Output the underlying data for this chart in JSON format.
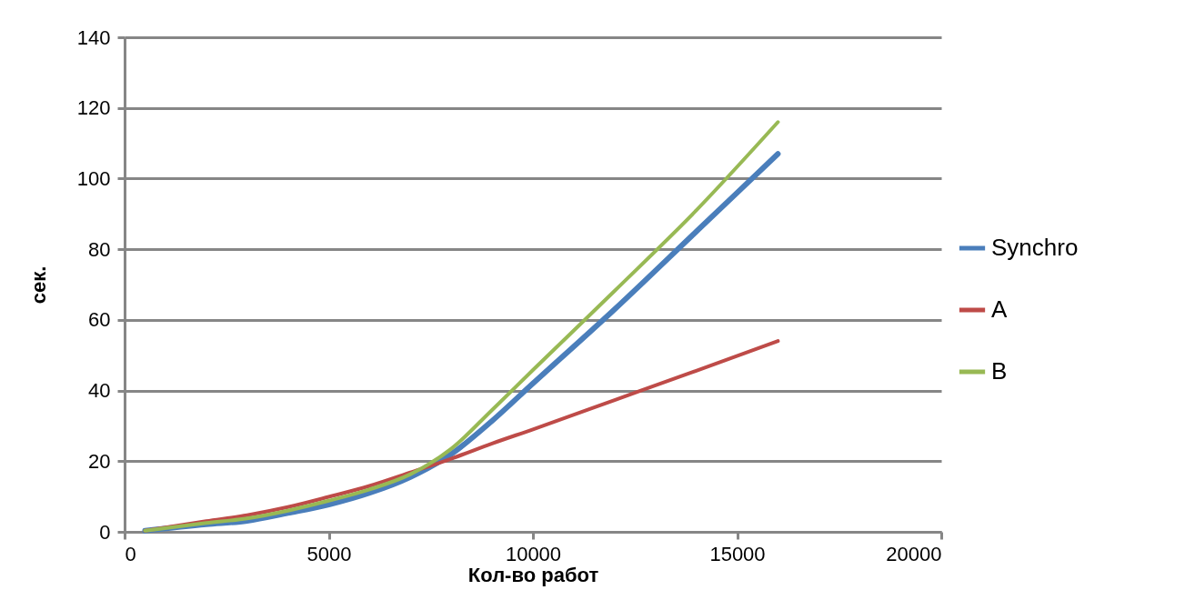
{
  "chart_data": {
    "type": "line",
    "xlabel": "Кол-во работ",
    "ylabel": "сек.",
    "x": [
      500,
      2000,
      3000,
      4000,
      5000,
      6000,
      7000,
      8000,
      9000,
      10000,
      12000,
      14000,
      16000
    ],
    "series": [
      {
        "name": "Synchro",
        "color": "#4a7ebb",
        "values": [
          0.3,
          2.1,
          3.1,
          5.3,
          7.7,
          11,
          15.5,
          22,
          31.4,
          42,
          63,
          85,
          107
        ]
      },
      {
        "name": "A",
        "color": "#be4b48",
        "values": [
          0.3,
          3,
          4.7,
          7,
          9.9,
          13,
          16.8,
          20.7,
          25,
          29,
          37.3,
          45.6,
          54
        ]
      },
      {
        "name": "B",
        "color": "#98b954",
        "values": [
          0.3,
          2.5,
          3.8,
          6,
          8.8,
          12,
          16.3,
          23.5,
          34.5,
          45.8,
          68.2,
          91,
          116
        ]
      }
    ],
    "xlim": [
      0,
      20000
    ],
    "xticks": [
      0,
      5000,
      10000,
      15000,
      20000
    ],
    "ylim": [
      0,
      140
    ],
    "yticks": [
      0,
      20,
      40,
      60,
      80,
      100,
      120,
      140
    ],
    "grid": "y",
    "legend": "right",
    "marker": "none",
    "line_style": "solid"
  }
}
